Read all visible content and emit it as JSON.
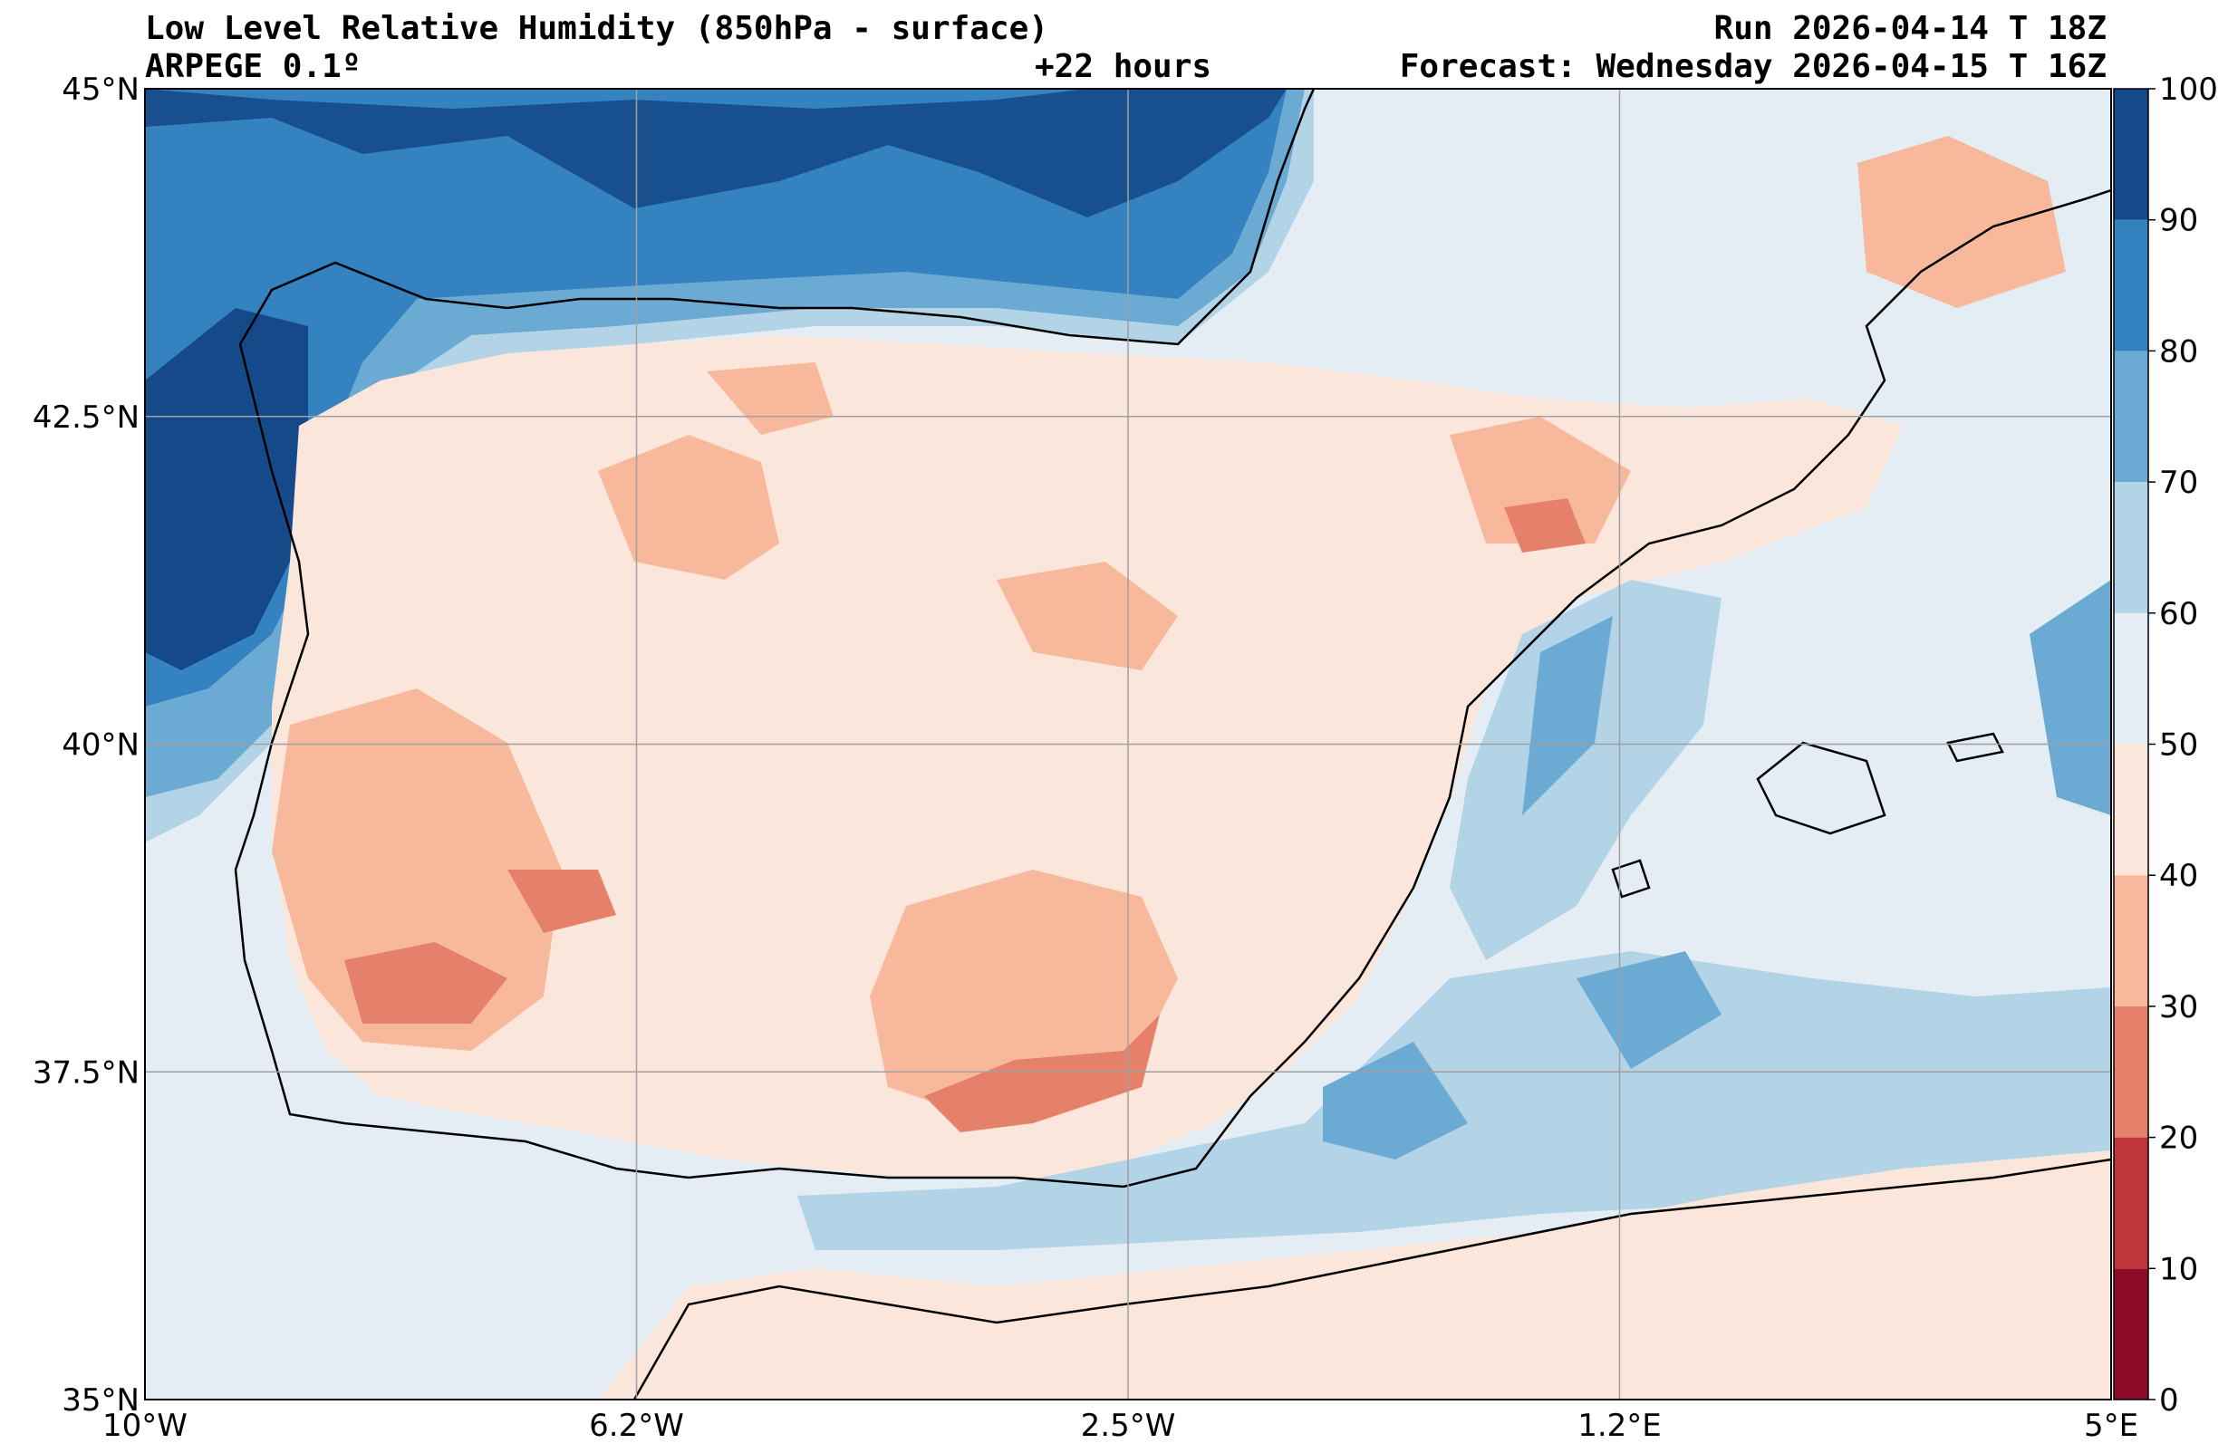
{
  "header": {
    "title_left": "Low Level Relative Humidity (850hPa - surface)",
    "model": "ARPEGE 0.1º",
    "lead": "+22 hours",
    "run": "Run 2026-04-14 T 18Z",
    "forecast": "Forecast: Wednesday 2026-04-15 T 16Z"
  },
  "map": {
    "extent": {
      "lon_min": -10,
      "lon_max": 5,
      "lat_min": 35,
      "lat_max": 45
    },
    "lat_ticks": [
      {
        "value": 45,
        "label": "45°N"
      },
      {
        "value": 42.5,
        "label": "42.5°N"
      },
      {
        "value": 40,
        "label": "40°N"
      },
      {
        "value": 37.5,
        "label": "37.5°N"
      },
      {
        "value": 35,
        "label": "35°N"
      }
    ],
    "lon_ticks": [
      {
        "value": -10,
        "label": "10°W"
      },
      {
        "value": -6.25,
        "label": "6.2°W"
      },
      {
        "value": -2.5,
        "label": "2.5°W"
      },
      {
        "value": 1.25,
        "label": "1.2°E"
      },
      {
        "value": 5,
        "label": "5°E"
      }
    ]
  },
  "colorbar": {
    "levels": [
      "0",
      "10",
      "20",
      "30",
      "40",
      "50",
      "60",
      "70",
      "80",
      "90",
      "100"
    ],
    "colors": [
      "#8b0a26",
      "#c0353a",
      "#e5806a",
      "#f8b89b",
      "#fbe6dc",
      "#e4ecf4",
      "#b3d4e6",
      "#6aaad3",
      "#3482bf",
      "#15498a"
    ]
  }
}
